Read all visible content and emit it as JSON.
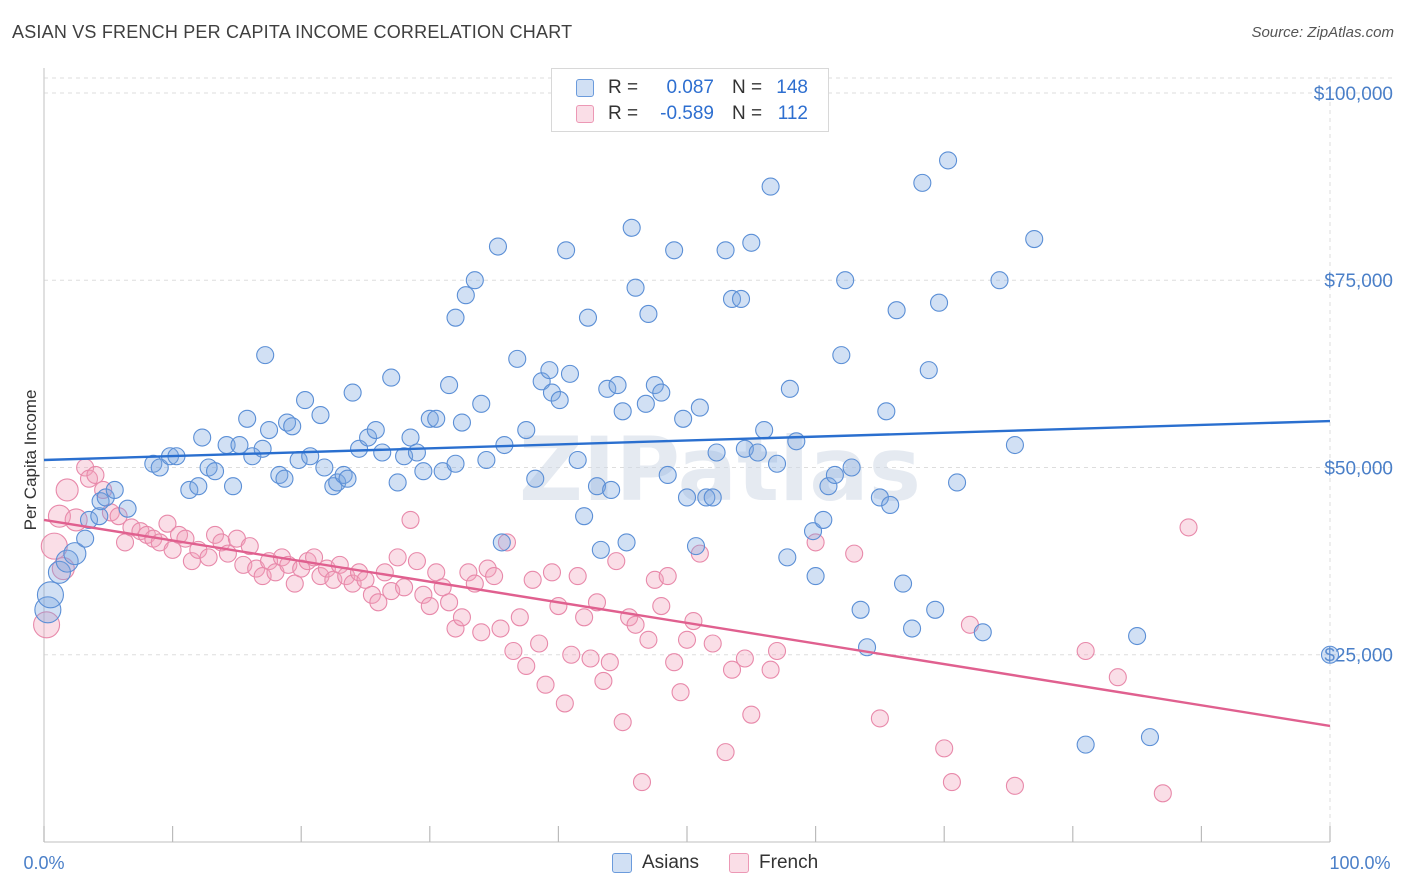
{
  "title": "ASIAN VS FRENCH PER CAPITA INCOME CORRELATION CHART",
  "source": "Source: ZipAtlas.com",
  "watermark": "ZIPatlas",
  "legend": {
    "r_label": "R =",
    "n_label": "N =",
    "rows": [
      {
        "name": "Asians",
        "r": "0.087",
        "n": "148",
        "color": "#7aa6e0"
      },
      {
        "name": "French",
        "r": "-0.589",
        "n": "112",
        "color": "#f0a0bb"
      }
    ]
  },
  "bottom_legend": [
    {
      "label": "Asians",
      "color": "#7aa6e0"
    },
    {
      "label": "French",
      "color": "#f0a0bb"
    }
  ],
  "colors": {
    "asians_fill": "rgba(122,166,224,0.35)",
    "asians_stroke": "#5b8fd6",
    "asians_line": "#2a6fcf",
    "french_fill": "rgba(240,160,187,0.35)",
    "french_stroke": "#e889aa",
    "french_line": "#e0608f",
    "grid": "#dddddd",
    "tick_text": "#4a7fc8"
  },
  "chart_data": {
    "type": "scatter",
    "title": "ASIAN VS FRENCH PER CAPITA INCOME CORRELATION CHART",
    "xlabel": "",
    "ylabel": "Per Capita Income",
    "xlim": [
      0,
      100
    ],
    "ylim": [
      0,
      102000
    ],
    "x_tick_labels": [
      "0.0%",
      "100.0%"
    ],
    "y_ticks": [
      25000,
      50000,
      75000,
      100000
    ],
    "y_tick_labels": [
      "$25,000",
      "$50,000",
      "$75,000",
      "$100,000"
    ],
    "series": [
      {
        "name": "Asians",
        "trend": [
          [
            0,
            51000
          ],
          [
            100,
            56200
          ]
        ],
        "points": [
          [
            0.3,
            31000
          ],
          [
            0.5,
            33000
          ],
          [
            1.2,
            36000
          ],
          [
            1.8,
            37500
          ],
          [
            2.4,
            38500
          ],
          [
            3.2,
            40500
          ],
          [
            3.5,
            43000
          ],
          [
            4.3,
            43500
          ],
          [
            4.4,
            45500
          ],
          [
            4.8,
            46000
          ],
          [
            5.5,
            47000
          ],
          [
            6.5,
            44500
          ],
          [
            8.5,
            50500
          ],
          [
            9.0,
            50000
          ],
          [
            9.8,
            51500
          ],
          [
            10.3,
            51500
          ],
          [
            11.3,
            47000
          ],
          [
            12.0,
            47500
          ],
          [
            12.3,
            54000
          ],
          [
            12.8,
            50000
          ],
          [
            13.3,
            49500
          ],
          [
            14.2,
            53000
          ],
          [
            14.7,
            47500
          ],
          [
            15.2,
            53000
          ],
          [
            15.8,
            56500
          ],
          [
            16.2,
            51500
          ],
          [
            17.0,
            52500
          ],
          [
            17.2,
            65000
          ],
          [
            17.5,
            55000
          ],
          [
            18.3,
            49000
          ],
          [
            18.7,
            48500
          ],
          [
            18.9,
            56000
          ],
          [
            19.3,
            55500
          ],
          [
            19.8,
            51000
          ],
          [
            20.3,
            59000
          ],
          [
            20.7,
            51500
          ],
          [
            21.5,
            57000
          ],
          [
            21.8,
            50000
          ],
          [
            22.5,
            47500
          ],
          [
            22.8,
            48000
          ],
          [
            23.3,
            49000
          ],
          [
            23.6,
            48500
          ],
          [
            24.0,
            60000
          ],
          [
            24.5,
            52500
          ],
          [
            25.2,
            54000
          ],
          [
            25.8,
            55000
          ],
          [
            26.3,
            52000
          ],
          [
            27.0,
            62000
          ],
          [
            27.5,
            48000
          ],
          [
            28.0,
            51500
          ],
          [
            28.5,
            54000
          ],
          [
            29.0,
            52000
          ],
          [
            29.5,
            49500
          ],
          [
            30.0,
            56500
          ],
          [
            30.5,
            56500
          ],
          [
            31.0,
            49500
          ],
          [
            31.5,
            61000
          ],
          [
            32.0,
            50500
          ],
          [
            32.5,
            56000
          ],
          [
            32.0,
            70000
          ],
          [
            32.8,
            73000
          ],
          [
            33.5,
            75000
          ],
          [
            34.0,
            58500
          ],
          [
            34.4,
            51000
          ],
          [
            35.3,
            79500
          ],
          [
            35.6,
            40000
          ],
          [
            35.8,
            53000
          ],
          [
            36.8,
            64500
          ],
          [
            37.5,
            55000
          ],
          [
            38.2,
            48500
          ],
          [
            38.7,
            61500
          ],
          [
            39.3,
            63000
          ],
          [
            39.5,
            60000
          ],
          [
            40.1,
            59000
          ],
          [
            40.6,
            79000
          ],
          [
            40.9,
            62500
          ],
          [
            41.5,
            51000
          ],
          [
            42.0,
            43500
          ],
          [
            42.3,
            70000
          ],
          [
            43.0,
            47500
          ],
          [
            43.3,
            39000
          ],
          [
            43.8,
            60500
          ],
          [
            44.1,
            47000
          ],
          [
            44.6,
            61000
          ],
          [
            45.0,
            57500
          ],
          [
            45.3,
            40000
          ],
          [
            45.7,
            82000
          ],
          [
            46.0,
            74000
          ],
          [
            46.8,
            58500
          ],
          [
            47.0,
            70500
          ],
          [
            47.5,
            61000
          ],
          [
            48.0,
            60000
          ],
          [
            48.5,
            49000
          ],
          [
            49.0,
            79000
          ],
          [
            49.7,
            56500
          ],
          [
            50.0,
            46000
          ],
          [
            50.7,
            39500
          ],
          [
            51.0,
            58000
          ],
          [
            51.5,
            46000
          ],
          [
            52.0,
            46000
          ],
          [
            52.3,
            52000
          ],
          [
            53.0,
            79000
          ],
          [
            53.5,
            72500
          ],
          [
            54.2,
            72500
          ],
          [
            54.5,
            52500
          ],
          [
            55.0,
            80000
          ],
          [
            55.5,
            52000
          ],
          [
            56.0,
            55000
          ],
          [
            56.5,
            87500
          ],
          [
            57.0,
            50500
          ],
          [
            57.8,
            38000
          ],
          [
            58.0,
            60500
          ],
          [
            58.5,
            53500
          ],
          [
            59.8,
            41500
          ],
          [
            60.0,
            35500
          ],
          [
            60.6,
            43000
          ],
          [
            61.0,
            47500
          ],
          [
            61.5,
            49000
          ],
          [
            62.0,
            65000
          ],
          [
            62.3,
            75000
          ],
          [
            62.8,
            50000
          ],
          [
            63.5,
            31000
          ],
          [
            64.0,
            26000
          ],
          [
            65.0,
            46000
          ],
          [
            65.5,
            57500
          ],
          [
            65.8,
            45000
          ],
          [
            66.3,
            71000
          ],
          [
            66.8,
            34500
          ],
          [
            67.5,
            28500
          ],
          [
            68.3,
            88000
          ],
          [
            68.8,
            63000
          ],
          [
            69.3,
            31000
          ],
          [
            69.6,
            72000
          ],
          [
            70.3,
            91000
          ],
          [
            71.0,
            48000
          ],
          [
            73.0,
            28000
          ],
          [
            74.3,
            75000
          ],
          [
            75.5,
            53000
          ],
          [
            77.0,
            80500
          ],
          [
            81.0,
            13000
          ],
          [
            85.0,
            27500
          ],
          [
            86.0,
            14000
          ],
          [
            100.0,
            25000
          ]
        ]
      },
      {
        "name": "French",
        "trend": [
          [
            0,
            43000
          ],
          [
            100,
            15500
          ]
        ],
        "points": [
          [
            0.2,
            29000
          ],
          [
            0.8,
            39500
          ],
          [
            1.5,
            36500
          ],
          [
            1.8,
            47000
          ],
          [
            1.2,
            43500
          ],
          [
            2.5,
            43000
          ],
          [
            3.2,
            50000
          ],
          [
            3.5,
            48500
          ],
          [
            4.0,
            49000
          ],
          [
            4.6,
            47000
          ],
          [
            5.2,
            44000
          ],
          [
            5.8,
            43500
          ],
          [
            6.3,
            40000
          ],
          [
            6.8,
            42000
          ],
          [
            7.5,
            41500
          ],
          [
            8.0,
            41000
          ],
          [
            8.5,
            40500
          ],
          [
            9.0,
            40000
          ],
          [
            9.6,
            42500
          ],
          [
            10.0,
            39000
          ],
          [
            10.5,
            41000
          ],
          [
            11.0,
            40500
          ],
          [
            11.5,
            37500
          ],
          [
            12.0,
            39000
          ],
          [
            12.8,
            38000
          ],
          [
            13.3,
            41000
          ],
          [
            13.8,
            40000
          ],
          [
            14.3,
            38500
          ],
          [
            15.0,
            40500
          ],
          [
            15.5,
            37000
          ],
          [
            16.0,
            39500
          ],
          [
            16.5,
            36500
          ],
          [
            17.0,
            35500
          ],
          [
            17.5,
            37500
          ],
          [
            18.0,
            36000
          ],
          [
            18.5,
            38000
          ],
          [
            19.0,
            37000
          ],
          [
            19.5,
            34500
          ],
          [
            20.0,
            36500
          ],
          [
            20.5,
            37500
          ],
          [
            21.0,
            38000
          ],
          [
            21.5,
            35500
          ],
          [
            22.0,
            36500
          ],
          [
            22.5,
            35000
          ],
          [
            23.0,
            37000
          ],
          [
            23.5,
            35500
          ],
          [
            24.0,
            34500
          ],
          [
            24.5,
            36000
          ],
          [
            25.0,
            35000
          ],
          [
            25.5,
            33000
          ],
          [
            26.0,
            32000
          ],
          [
            26.5,
            36000
          ],
          [
            27.0,
            33500
          ],
          [
            27.5,
            38000
          ],
          [
            28.0,
            34000
          ],
          [
            28.5,
            43000
          ],
          [
            29.0,
            37500
          ],
          [
            29.5,
            33000
          ],
          [
            30.0,
            31500
          ],
          [
            30.5,
            36000
          ],
          [
            31.0,
            34000
          ],
          [
            31.5,
            32000
          ],
          [
            32.0,
            28500
          ],
          [
            32.5,
            30000
          ],
          [
            33.0,
            36000
          ],
          [
            33.5,
            34500
          ],
          [
            34.0,
            28000
          ],
          [
            34.5,
            36500
          ],
          [
            35.0,
            35500
          ],
          [
            35.5,
            28500
          ],
          [
            36.0,
            40000
          ],
          [
            36.5,
            25500
          ],
          [
            37.0,
            30000
          ],
          [
            37.5,
            23500
          ],
          [
            38.0,
            35000
          ],
          [
            38.5,
            26500
          ],
          [
            39.0,
            21000
          ],
          [
            39.5,
            36000
          ],
          [
            40.0,
            31500
          ],
          [
            40.5,
            18500
          ],
          [
            41.0,
            25000
          ],
          [
            41.5,
            35500
          ],
          [
            42.0,
            30000
          ],
          [
            42.5,
            24500
          ],
          [
            43.0,
            32000
          ],
          [
            43.5,
            21500
          ],
          [
            44.0,
            24000
          ],
          [
            44.5,
            37500
          ],
          [
            45.0,
            16000
          ],
          [
            45.5,
            30000
          ],
          [
            46.0,
            29000
          ],
          [
            46.5,
            8000
          ],
          [
            47.0,
            27000
          ],
          [
            47.5,
            35000
          ],
          [
            48.0,
            31500
          ],
          [
            48.5,
            35500
          ],
          [
            49.0,
            24000
          ],
          [
            49.5,
            20000
          ],
          [
            50.0,
            27000
          ],
          [
            50.5,
            29500
          ],
          [
            51.0,
            38500
          ],
          [
            52.0,
            26500
          ],
          [
            53.0,
            12000
          ],
          [
            53.5,
            23000
          ],
          [
            54.5,
            24500
          ],
          [
            55.0,
            17000
          ],
          [
            56.5,
            23000
          ],
          [
            57.0,
            25500
          ],
          [
            60.0,
            40000
          ],
          [
            63.0,
            38500
          ],
          [
            65.0,
            16500
          ],
          [
            70.0,
            12500
          ],
          [
            70.6,
            8000
          ],
          [
            72.0,
            29000
          ],
          [
            75.5,
            7500
          ],
          [
            81.0,
            25500
          ],
          [
            83.5,
            22000
          ],
          [
            87.0,
            6500
          ],
          [
            89.0,
            42000
          ]
        ]
      }
    ]
  }
}
